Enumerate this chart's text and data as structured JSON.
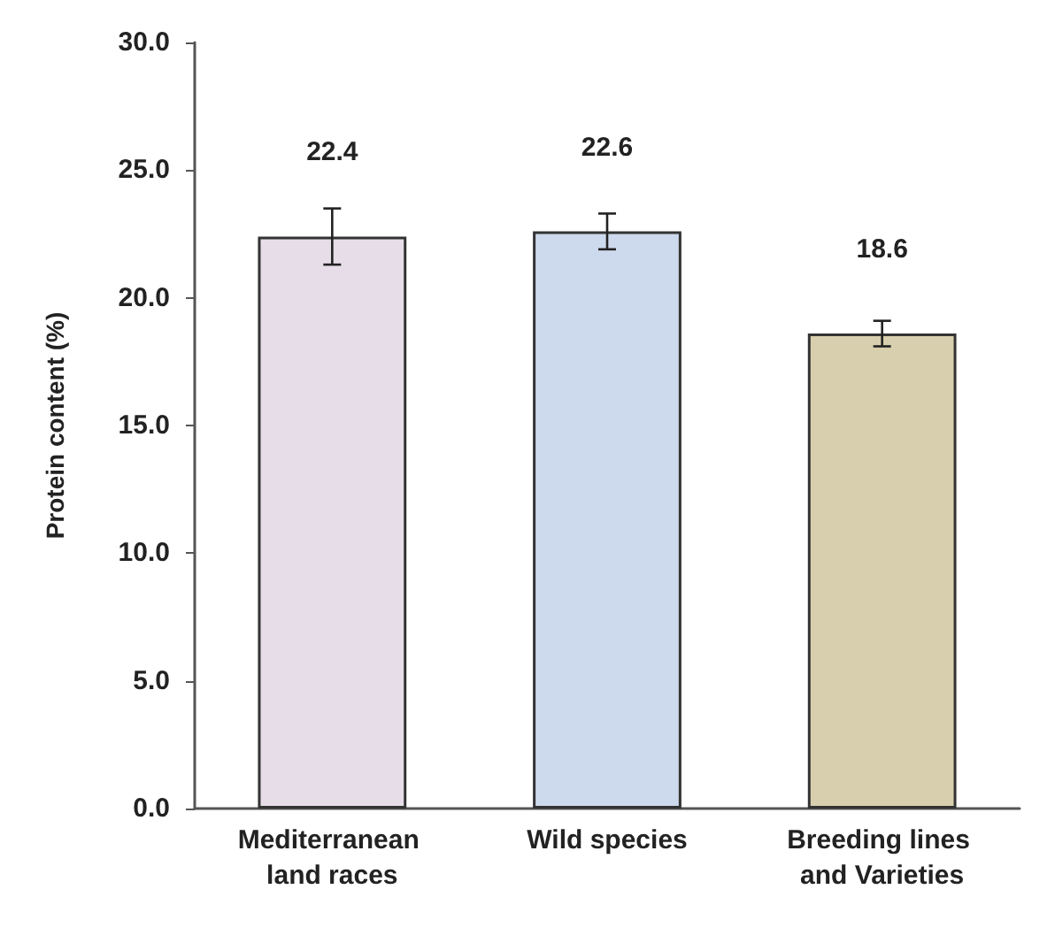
{
  "chart_data": {
    "type": "bar",
    "ylabel": "Protein content (%)",
    "categories": [
      "Mediterranean land races",
      "Wild species",
      "Breeding lines and Varieties"
    ],
    "values": [
      22.4,
      22.6,
      18.6
    ],
    "colors": [
      "#e6dde8",
      "#cdd9ec",
      "#d8cfae"
    ],
    "errors": [
      1.1,
      0.7,
      0.5
    ],
    "ylim": [
      0,
      30
    ],
    "yticks": [
      {
        "value": 0,
        "label": "0.0"
      },
      {
        "value": 5,
        "label": "5.0"
      },
      {
        "value": 10,
        "label": "10.0"
      },
      {
        "value": 15,
        "label": "15.0"
      },
      {
        "value": 20,
        "label": "20.0"
      },
      {
        "value": 25,
        "label": "25.0"
      },
      {
        "value": 30,
        "label": "30.0"
      }
    ],
    "data_labels": true
  }
}
